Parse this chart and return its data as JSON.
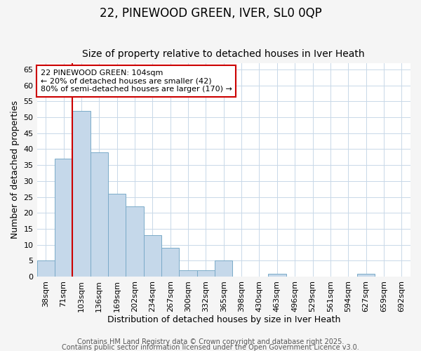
{
  "title1": "22, PINEWOOD GREEN, IVER, SL0 0QP",
  "title2": "Size of property relative to detached houses in Iver Heath",
  "xlabel": "Distribution of detached houses by size in Iver Heath",
  "ylabel": "Number of detached properties",
  "categories": [
    "38sqm",
    "71sqm",
    "103sqm",
    "136sqm",
    "169sqm",
    "202sqm",
    "234sqm",
    "267sqm",
    "300sqm",
    "332sqm",
    "365sqm",
    "398sqm",
    "430sqm",
    "463sqm",
    "496sqm",
    "529sqm",
    "561sqm",
    "594sqm",
    "627sqm",
    "659sqm",
    "692sqm"
  ],
  "values": [
    5,
    37,
    52,
    39,
    26,
    22,
    13,
    9,
    2,
    2,
    5,
    0,
    0,
    1,
    0,
    0,
    0,
    0,
    1,
    0,
    0
  ],
  "bar_color": "#c5d8ea",
  "bar_edge_color": "#7aaac8",
  "highlight_index": 2,
  "highlight_line_color": "#cc0000",
  "ylim": [
    0,
    67
  ],
  "yticks": [
    0,
    5,
    10,
    15,
    20,
    25,
    30,
    35,
    40,
    45,
    50,
    55,
    60,
    65
  ],
  "annotation_line1": "22 PINEWOOD GREEN: 104sqm",
  "annotation_line2": "← 20% of detached houses are smaller (42)",
  "annotation_line3": "80% of semi-detached houses are larger (170) →",
  "annotation_box_color": "#ffffff",
  "annotation_box_edge_color": "#cc0000",
  "footer1": "Contains HM Land Registry data © Crown copyright and database right 2025.",
  "footer2": "Contains public sector information licensed under the Open Government Licence v3.0.",
  "fig_background_color": "#f5f5f5",
  "plot_background_color": "#ffffff",
  "grid_color": "#c8d8e8",
  "title1_fontsize": 12,
  "title2_fontsize": 10,
  "xlabel_fontsize": 9,
  "ylabel_fontsize": 9,
  "tick_fontsize": 8,
  "annotation_fontsize": 8,
  "footer_fontsize": 7
}
